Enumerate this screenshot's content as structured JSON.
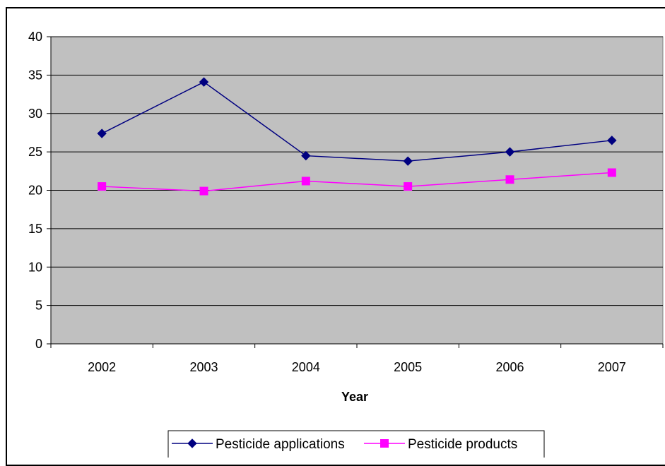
{
  "chart_data": {
    "type": "line",
    "title": "",
    "xlabel": "Year",
    "ylabel": "",
    "categories": [
      "2002",
      "2003",
      "2004",
      "2005",
      "2006",
      "2007"
    ],
    "ylim": [
      0,
      40
    ],
    "yticks": [
      0,
      5,
      10,
      15,
      20,
      25,
      30,
      35,
      40
    ],
    "grid": true,
    "plot_background": "#c0c0c0",
    "legend_position": "bottom",
    "series": [
      {
        "name": "Pesticide applications",
        "values": [
          27.4,
          34.1,
          24.5,
          23.8,
          25.0,
          26.5
        ],
        "color": "#000080",
        "marker": "diamond"
      },
      {
        "name": "Pesticide products",
        "values": [
          20.5,
          19.9,
          21.2,
          20.5,
          21.4,
          22.3
        ],
        "color": "#ff00ff",
        "marker": "square"
      }
    ]
  }
}
